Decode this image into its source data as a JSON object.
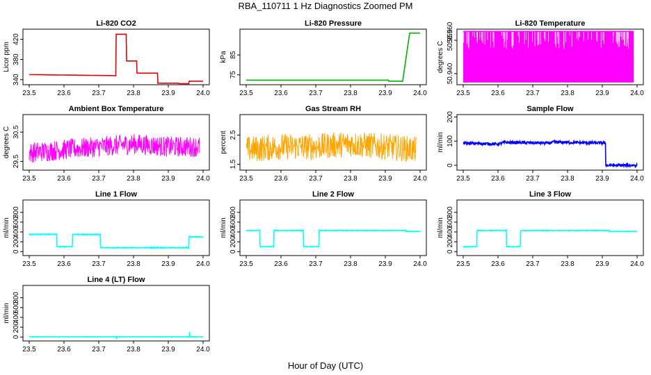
{
  "figure": {
    "title": "RBA_110711  1 Hz Diagnostics Zoomed PM",
    "xlabel": "Hour of Day (UTC)"
  },
  "chart_data": [
    {
      "type": "line",
      "title": "Li-820 CO2",
      "ylabel": "Licor ppm",
      "xlim": [
        23.5,
        24.0
      ],
      "ylim": [
        330,
        440
      ],
      "yticks": [
        340,
        380,
        420
      ],
      "xticks": [
        23.5,
        23.6,
        23.7,
        23.8,
        23.9,
        24.0
      ],
      "color": "#e00000",
      "noise": 0,
      "series": [
        {
          "x": [
            23.5,
            23.75,
            23.75,
            23.78,
            23.78,
            23.81,
            23.81,
            23.87,
            23.87,
            23.93,
            23.93,
            23.96,
            23.96,
            24.0
          ],
          "y": [
            350,
            348,
            430,
            430,
            377,
            377,
            353,
            353,
            333,
            333,
            331,
            331,
            337,
            337
          ]
        }
      ]
    },
    {
      "type": "line",
      "title": "Li-820 Pressure",
      "ylabel": "kPa",
      "xlim": [
        23.5,
        24.0
      ],
      "ylim": [
        70,
        98
      ],
      "yticks": [
        75,
        85
      ],
      "xticks": [
        23.5,
        23.6,
        23.7,
        23.8,
        23.9,
        24.0
      ],
      "color": "#00b000",
      "noise": 0,
      "series": [
        {
          "x": [
            23.5,
            23.91,
            23.91,
            23.95,
            23.96,
            23.97,
            24.0
          ],
          "y": [
            72.3,
            72.3,
            71.8,
            71.8,
            84,
            96,
            96
          ]
        }
      ]
    },
    {
      "type": "line",
      "title": "Li-820 Temperature",
      "ylabel": "degrees C",
      "xlim": [
        23.5,
        24.0
      ],
      "ylim": [
        50.935,
        50.96
      ],
      "yticks": [
        50.94,
        50.955
      ],
      "ytick_labels": [
        "50.940",
        "50.955"
      ],
      "extra_tick": "50.960",
      "xticks": [
        23.5,
        23.6,
        23.7,
        23.8,
        23.9,
        24.0
      ],
      "color": "#ff00ff",
      "mode": "fill-band",
      "series": [
        {
          "x": [
            23.5,
            23.99
          ],
          "low": 50.936,
          "high": 50.959
        }
      ]
    },
    {
      "type": "line",
      "title": "Ambient Box Temperature",
      "ylabel": "degrees C",
      "xlim": [
        23.5,
        24.0
      ],
      "ylim": [
        29.2,
        31.1
      ],
      "yticks": [
        29.5,
        30.5
      ],
      "xticks": [
        23.5,
        23.6,
        23.7,
        23.8,
        23.9,
        24.0
      ],
      "color": "#ff00ff",
      "noise": 0.35,
      "series": [
        {
          "x": [
            23.5,
            23.6,
            23.7,
            23.8,
            23.9,
            23.99
          ],
          "y": [
            29.8,
            29.9,
            30.0,
            30.1,
            30.0,
            30.0
          ]
        }
      ]
    },
    {
      "type": "line",
      "title": "Gas Stream RH",
      "ylabel": "percent",
      "xlim": [
        23.5,
        24.0
      ],
      "ylim": [
        1.3,
        3.2
      ],
      "yticks": [
        1.5,
        2.5
      ],
      "xticks": [
        23.5,
        23.6,
        23.7,
        23.8,
        23.9,
        24.0
      ],
      "color": "#ffa500",
      "noise": 0.45,
      "series": [
        {
          "x": [
            23.5,
            23.6,
            23.7,
            23.8,
            23.9,
            23.99
          ],
          "y": [
            2.0,
            2.1,
            2.1,
            2.2,
            2.1,
            2.0
          ]
        }
      ]
    },
    {
      "type": "line",
      "title": "Sample Flow",
      "ylabel": "ml/min",
      "xlim": [
        23.5,
        24.0
      ],
      "ylim": [
        -20,
        210
      ],
      "yticks": [
        0,
        100,
        200
      ],
      "xticks": [
        23.5,
        23.6,
        23.7,
        23.8,
        23.9,
        24.0
      ],
      "color": "#0000ff",
      "noise": 6,
      "series": [
        {
          "x": [
            23.5,
            23.6,
            23.62,
            23.75,
            23.76,
            23.91,
            23.91,
            24.0
          ],
          "y": [
            92,
            88,
            95,
            92,
            96,
            92,
            0,
            0
          ]
        }
      ]
    },
    {
      "type": "line",
      "title": "Line 1 Flow",
      "ylabel": "ml/min",
      "xlim": [
        23.5,
        24.0
      ],
      "ylim": [
        -80,
        1050
      ],
      "yticks": [
        0,
        200,
        400,
        600,
        800
      ],
      "xticks": [
        23.5,
        23.6,
        23.7,
        23.8,
        23.9,
        24.0
      ],
      "color": "#00ffff",
      "noise": 8,
      "series": [
        {
          "x": [
            23.5,
            23.58,
            23.58,
            23.625,
            23.625,
            23.705,
            23.705,
            23.96,
            23.96,
            24.0
          ],
          "y": [
            350,
            350,
            100,
            100,
            350,
            350,
            80,
            80,
            300,
            300
          ]
        }
      ]
    },
    {
      "type": "line",
      "title": "Line 2 Flow",
      "ylabel": "ml/min",
      "xlim": [
        23.5,
        24.0
      ],
      "ylim": [
        -80,
        1050
      ],
      "yticks": [
        0,
        200,
        400,
        600,
        800
      ],
      "xticks": [
        23.5,
        23.6,
        23.7,
        23.8,
        23.9,
        24.0
      ],
      "color": "#00ffff",
      "noise": 6,
      "series": [
        {
          "x": [
            23.5,
            23.54,
            23.54,
            23.58,
            23.58,
            23.665,
            23.665,
            23.71,
            23.71,
            23.96,
            23.96,
            24.0
          ],
          "y": [
            430,
            430,
            100,
            100,
            430,
            430,
            100,
            100,
            430,
            430,
            410,
            410
          ]
        }
      ]
    },
    {
      "type": "line",
      "title": "Line 3 Flow",
      "ylabel": "ml/min",
      "xlim": [
        23.5,
        24.0
      ],
      "ylim": [
        -80,
        1050
      ],
      "yticks": [
        0,
        200,
        400,
        600,
        800
      ],
      "xticks": [
        23.5,
        23.6,
        23.7,
        23.8,
        23.9,
        24.0
      ],
      "color": "#00ffff",
      "noise": 6,
      "series": [
        {
          "x": [
            23.5,
            23.5,
            23.54,
            23.54,
            23.625,
            23.625,
            23.665,
            23.665,
            23.92,
            23.92,
            24.0
          ],
          "y": [
            430,
            100,
            100,
            430,
            430,
            100,
            100,
            430,
            430,
            410,
            410
          ]
        }
      ]
    },
    {
      "type": "line",
      "title": "Line 4 (LT) Flow",
      "ylabel": "ml/min",
      "xlim": [
        23.5,
        24.0
      ],
      "ylim": [
        -80,
        1050
      ],
      "yticks": [
        0,
        200,
        400,
        600,
        800
      ],
      "xticks": [
        23.5,
        23.6,
        23.7,
        23.8,
        23.9,
        24.0
      ],
      "color": "#00ffff",
      "noise": 4,
      "series": [
        {
          "x": [
            23.5,
            23.75,
            23.751,
            23.752,
            23.96,
            23.961,
            23.962,
            24.0
          ],
          "y": [
            5,
            5,
            -40,
            5,
            5,
            100,
            5,
            5
          ]
        }
      ]
    }
  ]
}
